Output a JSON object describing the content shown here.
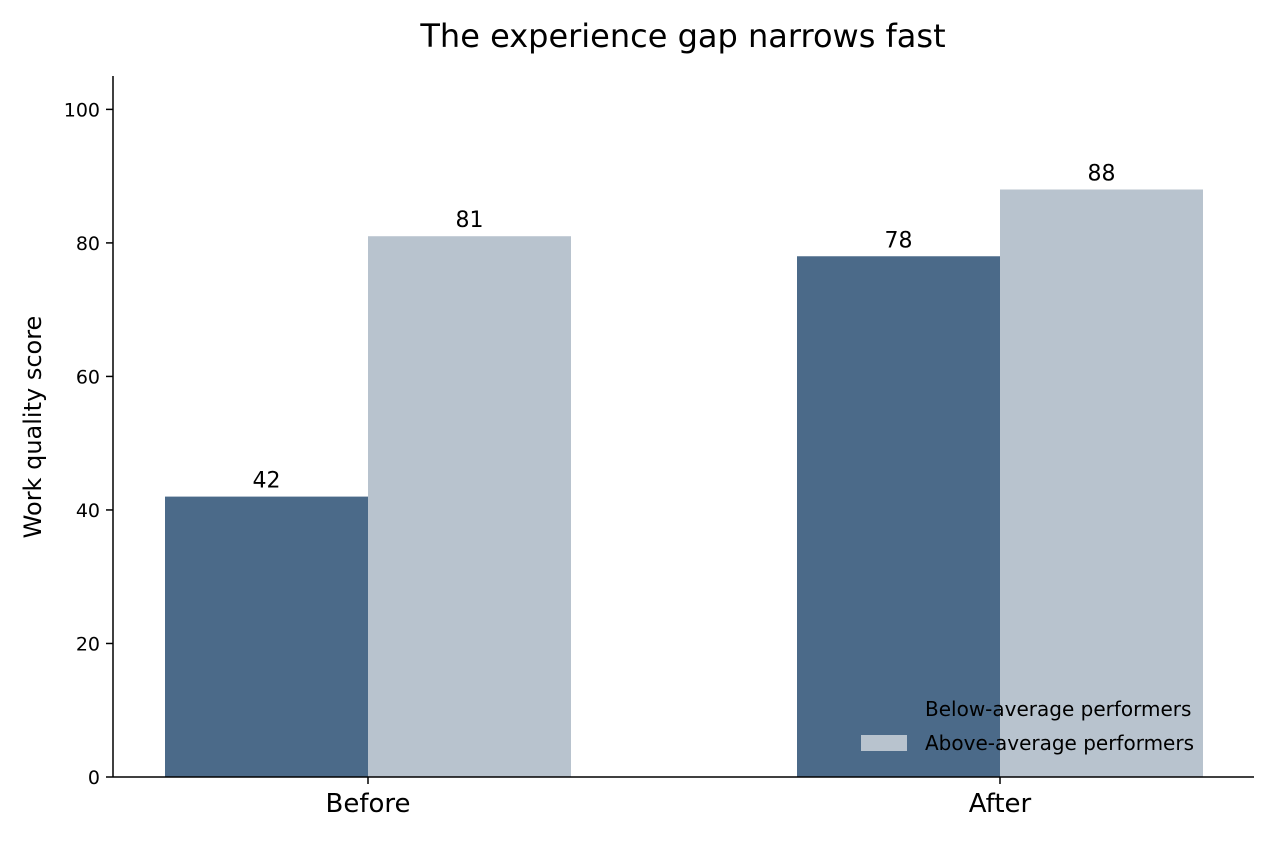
{
  "chart_data": {
    "type": "bar",
    "title": "The experience gap narrows fast",
    "xlabel": "",
    "ylabel": "Work quality score",
    "categories": [
      "Before",
      "After"
    ],
    "series": [
      {
        "name": "Below-average performers",
        "values": [
          42,
          78
        ],
        "color": "#4b6a89"
      },
      {
        "name": "Above-average performers",
        "values": [
          81,
          88
        ],
        "color": "#b8c3ce"
      }
    ],
    "ylim": [
      0,
      105
    ],
    "yticks": [
      "0",
      "20",
      "40",
      "60",
      "80",
      "100"
    ],
    "data_labels": true,
    "grid": false,
    "legend_position": "lower-right"
  }
}
